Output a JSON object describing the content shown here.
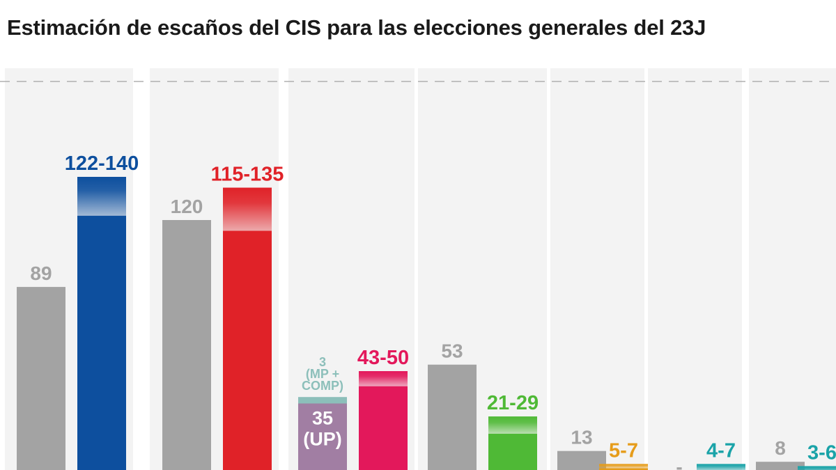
{
  "title": "Estimación de escaños del CIS para las elecciones generales del 23J",
  "chart_data": {
    "type": "bar",
    "title": "Estimación de escaños del CIS para las elecciones generales del 23J",
    "xlabel": "",
    "ylabel": "",
    "grid": "dashed reference line at top",
    "ylim": [
      0,
      176
    ],
    "groups": [
      {
        "previous": {
          "value": 89,
          "label": "89",
          "color": "#a3a3a3"
        },
        "estimate": {
          "min": 122,
          "max": 140,
          "label": "122-140",
          "color": "#0d4f9e"
        }
      },
      {
        "previous": {
          "value": 120,
          "label": "120",
          "color": "#a3a3a3"
        },
        "estimate": {
          "min": 115,
          "max": 135,
          "label": "115-135",
          "color": "#e02228"
        }
      },
      {
        "previous": {
          "value": 35,
          "label": "35\n(UP)",
          "color": "#a17ea3",
          "extra": {
            "value": 3,
            "label": "3\n(MP +\nCOMP)",
            "color": "#8cbfba"
          }
        },
        "estimate": {
          "min": 43,
          "max": 50,
          "label": "43-50",
          "color": "#e3185b"
        }
      },
      {
        "previous": {
          "value": 53,
          "label": "53",
          "color": "#a3a3a3"
        },
        "estimate": {
          "min": 21,
          "max": 29,
          "label": "21-29",
          "color": "#4fb936"
        }
      },
      {
        "previous": {
          "value": 13,
          "label": "13",
          "color": "#a3a3a3"
        },
        "estimate": {
          "min": 5,
          "max": 7,
          "label": "5-7",
          "color": "#e69c1a"
        }
      },
      {
        "previous": {
          "value": 0,
          "label": "-",
          "color": "#a3a3a3"
        },
        "estimate": {
          "min": 4,
          "max": 7,
          "label": "4-7",
          "color": "#1aa3a8"
        }
      },
      {
        "previous": {
          "value": 8,
          "label": "8",
          "color": "#a3a3a3"
        },
        "estimate": {
          "min": 3,
          "max": 6,
          "label": "3-6",
          "color": "#1aa3a8"
        }
      }
    ]
  }
}
